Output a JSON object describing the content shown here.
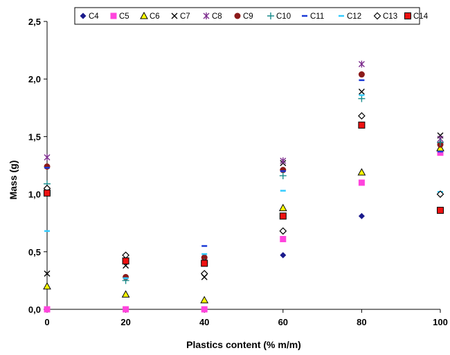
{
  "chart_data": {
    "type": "scatter",
    "title": "",
    "xlabel": "Plastics content (% m/m)",
    "ylabel": "Mass (g)",
    "xlim": [
      0,
      100
    ],
    "ylim": [
      0,
      2.5
    ],
    "x_ticks": [
      0,
      20,
      40,
      60,
      80,
      100
    ],
    "y_ticks": [
      0,
      0.5,
      1.0,
      1.5,
      2.0,
      2.5
    ],
    "x_tick_labels": [
      "0",
      "20",
      "40",
      "60",
      "80",
      "100"
    ],
    "y_tick_labels": [
      "0,0",
      "0,5",
      "1,0",
      "1,5",
      "2,0",
      "2,5"
    ],
    "grid": false,
    "legend_placement": "top",
    "x": [
      0,
      20,
      40,
      60,
      80,
      100
    ],
    "series": [
      {
        "name": "C4",
        "marker": "diamond",
        "color": "#1a1a8c",
        "values": [
          0.0,
          0.0,
          0.0,
          0.47,
          0.81,
          1.44
        ]
      },
      {
        "name": "C5",
        "marker": "square",
        "color": "#ff44dd",
        "values": [
          0.0,
          0.0,
          0.0,
          0.61,
          1.1,
          1.36
        ]
      },
      {
        "name": "C6",
        "marker": "triangle",
        "color": "#ffff00",
        "values": [
          0.2,
          0.13,
          0.08,
          0.88,
          1.19,
          1.4
        ]
      },
      {
        "name": "C7",
        "marker": "x",
        "color": "#000000",
        "values": [
          0.31,
          0.38,
          0.28,
          1.27,
          1.89,
          1.51
        ]
      },
      {
        "name": "C8",
        "marker": "star",
        "color": "#7b2a8c",
        "values": [
          1.32,
          0.42,
          0.43,
          1.29,
          2.13,
          1.48
        ]
      },
      {
        "name": "C9",
        "marker": "circle",
        "color": "#8b1a1a",
        "values": [
          1.24,
          0.28,
          0.45,
          1.21,
          2.04,
          1.43
        ]
      },
      {
        "name": "C10",
        "marker": "plus",
        "color": "#1a8c8c",
        "values": [
          1.09,
          0.25,
          0.41,
          1.16,
          1.83,
          1.45
        ]
      },
      {
        "name": "C11",
        "marker": "dash",
        "color": "#1a3ad6",
        "values": [
          1.23,
          0.4,
          0.55,
          1.2,
          1.99,
          1.37
        ]
      },
      {
        "name": "C12",
        "marker": "dash",
        "color": "#33ccff",
        "values": [
          0.68,
          0.27,
          0.48,
          1.03,
          1.86,
          1.02
        ]
      },
      {
        "name": "C13",
        "marker": "diamond-open",
        "color": "#000000",
        "values": [
          1.05,
          0.47,
          0.31,
          0.68,
          1.68,
          1.0
        ]
      },
      {
        "name": "C14",
        "marker": "square-outline",
        "color": "#ee1111",
        "values": [
          1.01,
          0.42,
          0.4,
          0.81,
          1.6,
          0.86
        ]
      }
    ]
  }
}
